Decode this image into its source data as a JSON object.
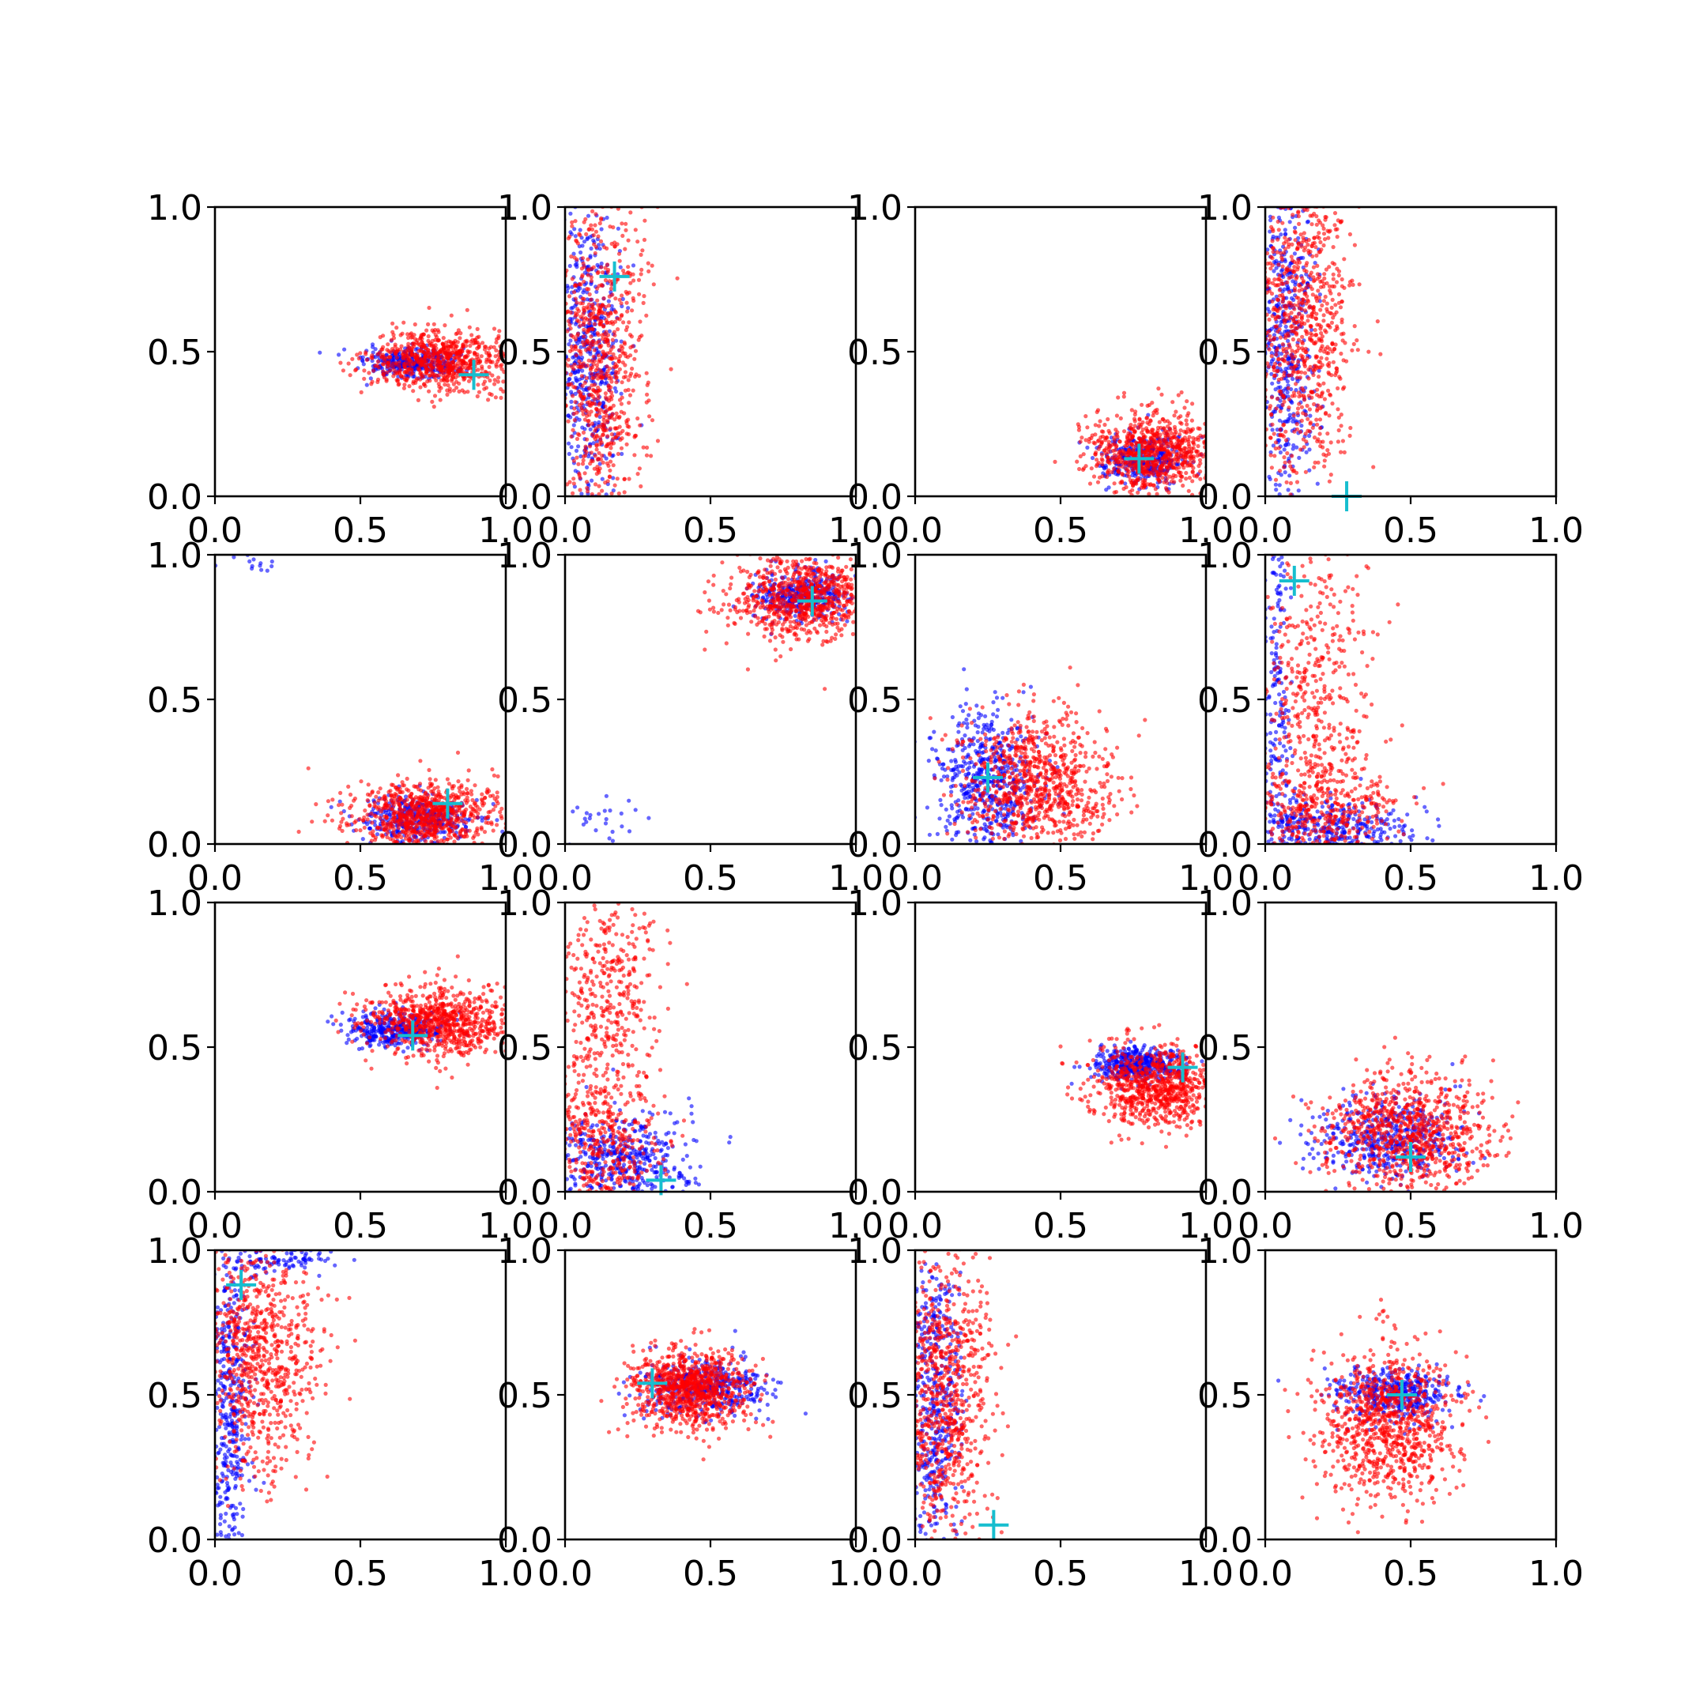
{
  "colors": {
    "series_blue": "#0000ff",
    "series_red": "#ff0000",
    "marker": "#17becf",
    "axes": "#000000",
    "background": "#ffffff"
  },
  "chart_data": [
    {
      "type": "scatter",
      "xlim": [
        0,
        1
      ],
      "ylim": [
        0,
        1
      ],
      "xticks": [
        "0.0",
        "0.5",
        "1.0"
      ],
      "yticks": [
        "0.0",
        "0.5",
        "1.0"
      ],
      "grid": false,
      "series": [
        {
          "color": "#0000ff",
          "clusters": [
            {
              "cx": 0.68,
              "cy": 0.46,
              "sx": 0.08,
              "sy": 0.025,
              "n": 360
            }
          ]
        },
        {
          "color": "#ff0000",
          "clusters": [
            {
              "cx": 0.78,
              "cy": 0.47,
              "sx": 0.12,
              "sy": 0.055,
              "n": 750
            }
          ]
        }
      ],
      "marker": {
        "x": 0.89,
        "y": 0.42
      }
    },
    {
      "type": "scatter",
      "xlim": [
        0,
        1
      ],
      "ylim": [
        0,
        1
      ],
      "xticks": [
        "0.0",
        "0.5",
        "1.0"
      ],
      "yticks": [
        "0.0",
        "0.5",
        "1.0"
      ],
      "grid": false,
      "series": [
        {
          "color": "#0000ff",
          "clusters": [
            {
              "cx": 0.08,
              "cy": 0.5,
              "sx": 0.055,
              "sy": 0.28,
              "n": 500
            }
          ]
        },
        {
          "color": "#ff0000",
          "clusters": [
            {
              "cx": 0.12,
              "cy": 0.45,
              "sx": 0.08,
              "sy": 0.3,
              "n": 850
            }
          ]
        }
      ],
      "marker": {
        "x": 0.17,
        "y": 0.76
      }
    },
    {
      "type": "scatter",
      "xlim": [
        0,
        1
      ],
      "ylim": [
        0,
        1
      ],
      "xticks": [
        "0.0",
        "0.5",
        "1.0"
      ],
      "yticks": [
        "0.0",
        "0.5",
        "1.0"
      ],
      "grid": false,
      "series": [
        {
          "color": "#0000ff",
          "clusters": [
            {
              "cx": 0.78,
              "cy": 0.13,
              "sx": 0.07,
              "sy": 0.04,
              "n": 350
            }
          ]
        },
        {
          "color": "#ff0000",
          "clusters": [
            {
              "cx": 0.82,
              "cy": 0.15,
              "sx": 0.11,
              "sy": 0.07,
              "n": 800
            }
          ]
        }
      ],
      "marker": {
        "x": 0.77,
        "y": 0.13
      }
    },
    {
      "type": "scatter",
      "xlim": [
        0,
        1
      ],
      "ylim": [
        0,
        1
      ],
      "xticks": [
        "0.0",
        "0.5",
        "1.0"
      ],
      "yticks": [
        "0.0",
        "0.5",
        "1.0"
      ],
      "grid": false,
      "series": [
        {
          "color": "#0000ff",
          "clusters": [
            {
              "cx": 0.07,
              "cy": 0.55,
              "sx": 0.05,
              "sy": 0.3,
              "n": 500
            }
          ]
        },
        {
          "color": "#ff0000",
          "clusters": [
            {
              "cx": 0.12,
              "cy": 0.6,
              "sx": 0.09,
              "sy": 0.28,
              "n": 850
            }
          ]
        }
      ],
      "marker": {
        "x": 0.28,
        "y": 0.0
      }
    },
    {
      "type": "scatter",
      "xlim": [
        0,
        1
      ],
      "ylim": [
        0,
        1
      ],
      "xticks": [
        "0.0",
        "0.5",
        "1.0"
      ],
      "yticks": [
        "0.0",
        "0.5",
        "1.0"
      ],
      "grid": false,
      "series": [
        {
          "color": "#0000ff",
          "clusters": [
            {
              "cx": 0.7,
              "cy": 0.09,
              "sx": 0.1,
              "sy": 0.04,
              "n": 380
            },
            {
              "cx": 0.1,
              "cy": 0.97,
              "sx": 0.05,
              "sy": 0.015,
              "n": 14
            }
          ]
        },
        {
          "color": "#ff0000",
          "clusters": [
            {
              "cx": 0.72,
              "cy": 0.1,
              "sx": 0.13,
              "sy": 0.06,
              "n": 800
            }
          ]
        }
      ],
      "marker": {
        "x": 0.8,
        "y": 0.14
      }
    },
    {
      "type": "scatter",
      "xlim": [
        0,
        1
      ],
      "ylim": [
        0,
        1
      ],
      "xticks": [
        "0.0",
        "0.5",
        "1.0"
      ],
      "yticks": [
        "0.0",
        "0.5",
        "1.0"
      ],
      "grid": false,
      "series": [
        {
          "color": "#0000ff",
          "clusters": [
            {
              "cx": 0.8,
              "cy": 0.86,
              "sx": 0.08,
              "sy": 0.04,
              "n": 380
            },
            {
              "cx": 0.12,
              "cy": 0.06,
              "sx": 0.06,
              "sy": 0.05,
              "n": 28
            }
          ]
        },
        {
          "color": "#ff0000",
          "clusters": [
            {
              "cx": 0.82,
              "cy": 0.85,
              "sx": 0.12,
              "sy": 0.07,
              "n": 800
            }
          ]
        }
      ],
      "marker": {
        "x": 0.85,
        "y": 0.84
      }
    },
    {
      "type": "scatter",
      "xlim": [
        0,
        1
      ],
      "ylim": [
        0,
        1
      ],
      "xticks": [
        "0.0",
        "0.5",
        "1.0"
      ],
      "yticks": [
        "0.0",
        "0.5",
        "1.0"
      ],
      "grid": false,
      "series": [
        {
          "color": "#0000ff",
          "clusters": [
            {
              "cx": 0.25,
              "cy": 0.22,
              "sx": 0.09,
              "sy": 0.12,
              "n": 550
            }
          ]
        },
        {
          "color": "#ff0000",
          "clusters": [
            {
              "cx": 0.42,
              "cy": 0.2,
              "sx": 0.13,
              "sy": 0.12,
              "n": 850
            }
          ]
        }
      ],
      "marker": {
        "x": 0.25,
        "y": 0.23
      }
    },
    {
      "type": "scatter",
      "xlim": [
        0,
        1
      ],
      "ylim": [
        0,
        1
      ],
      "xticks": [
        "0.0",
        "0.5",
        "1.0"
      ],
      "yticks": [
        "0.0",
        "0.5",
        "1.0"
      ],
      "grid": false,
      "series": [
        {
          "color": "#0000ff",
          "clusters": [
            {
              "cx": 0.2,
              "cy": 0.06,
              "sx": 0.15,
              "sy": 0.05,
              "n": 380
            },
            {
              "cx": 0.04,
              "cy": 0.5,
              "sx": 0.025,
              "sy": 0.28,
              "n": 170
            }
          ]
        },
        {
          "color": "#ff0000",
          "clusters": [
            {
              "cx": 0.2,
              "cy": 0.12,
              "sx": 0.13,
              "sy": 0.1,
              "n": 450
            },
            {
              "cx": 0.17,
              "cy": 0.6,
              "sx": 0.1,
              "sy": 0.25,
              "n": 380
            }
          ]
        }
      ],
      "marker": {
        "x": 0.1,
        "y": 0.91
      }
    },
    {
      "type": "scatter",
      "xlim": [
        0,
        1
      ],
      "ylim": [
        0,
        1
      ],
      "xticks": [
        "0.0",
        "0.5",
        "1.0"
      ],
      "yticks": [
        "0.0",
        "0.5",
        "1.0"
      ],
      "grid": false,
      "series": [
        {
          "color": "#0000ff",
          "clusters": [
            {
              "cx": 0.62,
              "cy": 0.56,
              "sx": 0.08,
              "sy": 0.03,
              "n": 380
            }
          ]
        },
        {
          "color": "#ff0000",
          "clusters": [
            {
              "cx": 0.78,
              "cy": 0.59,
              "sx": 0.13,
              "sy": 0.06,
              "n": 800
            }
          ]
        }
      ],
      "marker": {
        "x": 0.68,
        "y": 0.54
      }
    },
    {
      "type": "scatter",
      "xlim": [
        0,
        1
      ],
      "ylim": [
        0,
        1
      ],
      "xticks": [
        "0.0",
        "0.5",
        "1.0"
      ],
      "yticks": [
        "0.0",
        "0.5",
        "1.0"
      ],
      "grid": false,
      "series": [
        {
          "color": "#0000ff",
          "clusters": [
            {
              "cx": 0.2,
              "cy": 0.1,
              "sx": 0.12,
              "sy": 0.08,
              "n": 480
            }
          ]
        },
        {
          "color": "#ff0000",
          "clusters": [
            {
              "cx": 0.12,
              "cy": 0.2,
              "sx": 0.1,
              "sy": 0.16,
              "n": 480
            },
            {
              "cx": 0.15,
              "cy": 0.7,
              "sx": 0.09,
              "sy": 0.2,
              "n": 380
            }
          ]
        }
      ],
      "marker": {
        "x": 0.33,
        "y": 0.04
      }
    },
    {
      "type": "scatter",
      "xlim": [
        0,
        1
      ],
      "ylim": [
        0,
        1
      ],
      "xticks": [
        "0.0",
        "0.5",
        "1.0"
      ],
      "yticks": [
        "0.0",
        "0.5",
        "1.0"
      ],
      "grid": false,
      "series": [
        {
          "color": "#0000ff",
          "clusters": [
            {
              "cx": 0.76,
              "cy": 0.44,
              "sx": 0.08,
              "sy": 0.03,
              "n": 420
            }
          ]
        },
        {
          "color": "#ff0000",
          "clusters": [
            {
              "cx": 0.83,
              "cy": 0.37,
              "sx": 0.11,
              "sy": 0.07,
              "n": 800
            }
          ]
        }
      ],
      "marker": {
        "x": 0.92,
        "y": 0.43
      }
    },
    {
      "type": "scatter",
      "xlim": [
        0,
        1
      ],
      "ylim": [
        0,
        1
      ],
      "xticks": [
        "0.0",
        "0.5",
        "1.0"
      ],
      "yticks": [
        "0.0",
        "0.5",
        "1.0"
      ],
      "grid": false,
      "series": [
        {
          "color": "#0000ff",
          "clusters": [
            {
              "cx": 0.42,
              "cy": 0.18,
              "sx": 0.13,
              "sy": 0.07,
              "n": 480
            }
          ]
        },
        {
          "color": "#ff0000",
          "clusters": [
            {
              "cx": 0.5,
              "cy": 0.2,
              "sx": 0.14,
              "sy": 0.1,
              "n": 850
            }
          ]
        }
      ],
      "marker": {
        "x": 0.5,
        "y": 0.12
      }
    },
    {
      "type": "scatter",
      "xlim": [
        0,
        1
      ],
      "ylim": [
        0,
        1
      ],
      "xticks": [
        "0.0",
        "0.5",
        "1.0"
      ],
      "yticks": [
        "0.0",
        "0.5",
        "1.0"
      ],
      "grid": false,
      "series": [
        {
          "color": "#0000ff",
          "clusters": [
            {
              "cx": 0.05,
              "cy": 0.45,
              "sx": 0.035,
              "sy": 0.3,
              "n": 420
            },
            {
              "cx": 0.25,
              "cy": 0.97,
              "sx": 0.1,
              "sy": 0.03,
              "n": 100
            }
          ]
        },
        {
          "color": "#ff0000",
          "clusters": [
            {
              "cx": 0.15,
              "cy": 0.65,
              "sx": 0.1,
              "sy": 0.22,
              "n": 800
            }
          ]
        }
      ],
      "marker": {
        "x": 0.09,
        "y": 0.88
      }
    },
    {
      "type": "scatter",
      "xlim": [
        0,
        1
      ],
      "ylim": [
        0,
        1
      ],
      "xticks": [
        "0.0",
        "0.5",
        "1.0"
      ],
      "yticks": [
        "0.0",
        "0.5",
        "1.0"
      ],
      "grid": false,
      "series": [
        {
          "color": "#0000ff",
          "clusters": [
            {
              "cx": 0.48,
              "cy": 0.53,
              "sx": 0.11,
              "sy": 0.05,
              "n": 450
            }
          ]
        },
        {
          "color": "#ff0000",
          "clusters": [
            {
              "cx": 0.43,
              "cy": 0.52,
              "sx": 0.1,
              "sy": 0.065,
              "n": 900
            }
          ]
        }
      ],
      "marker": {
        "x": 0.3,
        "y": 0.54
      }
    },
    {
      "type": "scatter",
      "xlim": [
        0,
        1
      ],
      "ylim": [
        0,
        1
      ],
      "xticks": [
        "0.0",
        "0.5",
        "1.0"
      ],
      "yticks": [
        "0.0",
        "0.5",
        "1.0"
      ],
      "grid": false,
      "series": [
        {
          "color": "#0000ff",
          "clusters": [
            {
              "cx": 0.06,
              "cy": 0.5,
              "sx": 0.05,
              "sy": 0.28,
              "n": 500
            }
          ]
        },
        {
          "color": "#ff0000",
          "clusters": [
            {
              "cx": 0.1,
              "cy": 0.5,
              "sx": 0.08,
              "sy": 0.28,
              "n": 850
            }
          ]
        }
      ],
      "marker": {
        "x": 0.27,
        "y": 0.05
      }
    },
    {
      "type": "scatter",
      "xlim": [
        0,
        1
      ],
      "ylim": [
        0,
        1
      ],
      "xticks": [
        "0.0",
        "0.5",
        "1.0"
      ],
      "yticks": [
        "0.0",
        "0.5",
        "1.0"
      ],
      "grid": false,
      "series": [
        {
          "color": "#0000ff",
          "clusters": [
            {
              "cx": 0.45,
              "cy": 0.5,
              "sx": 0.1,
              "sy": 0.045,
              "n": 420
            }
          ]
        },
        {
          "color": "#ff0000",
          "clusters": [
            {
              "cx": 0.42,
              "cy": 0.4,
              "sx": 0.12,
              "sy": 0.13,
              "n": 900
            }
          ]
        }
      ],
      "marker": {
        "x": 0.47,
        "y": 0.5
      }
    }
  ]
}
